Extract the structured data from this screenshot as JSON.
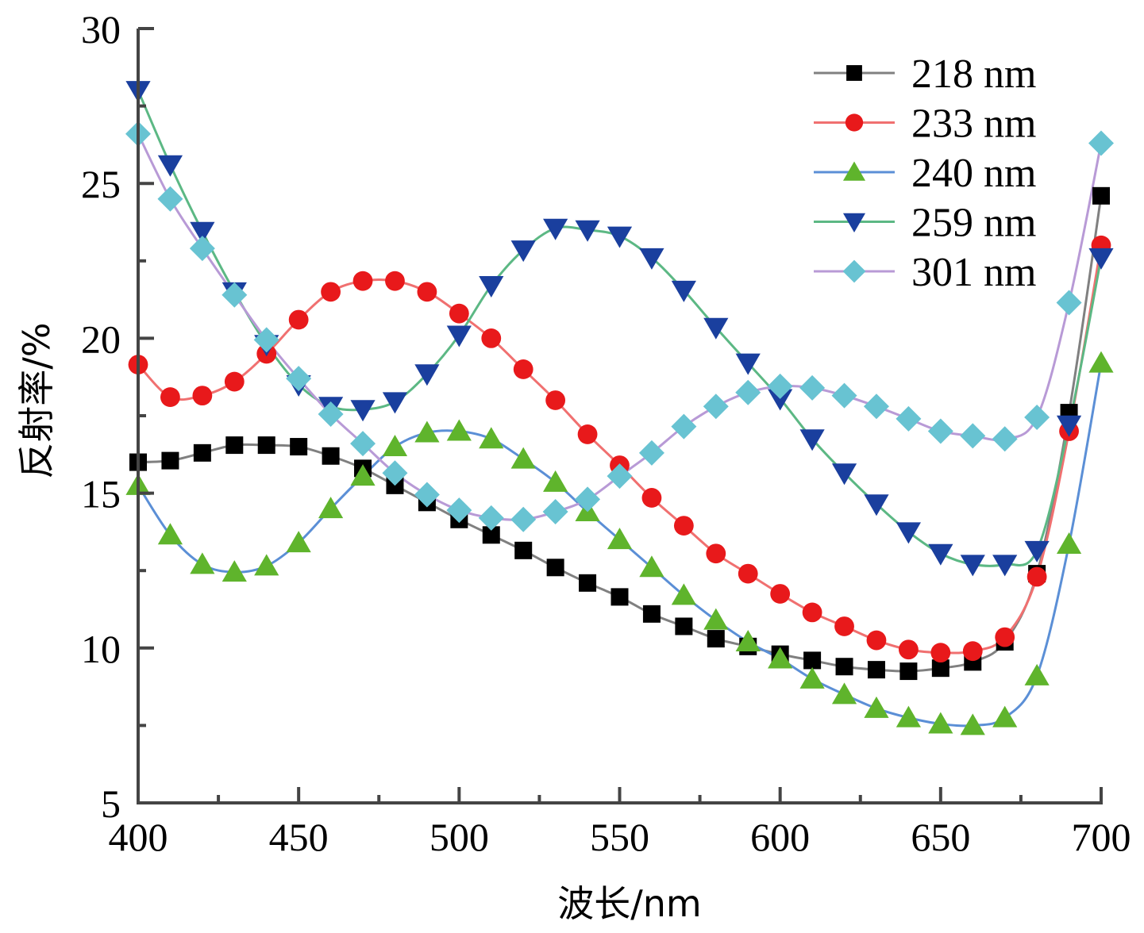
{
  "chart_data": {
    "type": "line",
    "title": "",
    "xlabel": "波长/nm",
    "ylabel": "反射率/%",
    "xlim": [
      400,
      700
    ],
    "ylim": [
      5,
      30
    ],
    "xticks": [
      400,
      450,
      500,
      550,
      600,
      650,
      700
    ],
    "yticks": [
      5,
      10,
      15,
      20,
      25,
      30
    ],
    "xtick_labels": [
      "400",
      "450",
      "500",
      "550",
      "600",
      "650",
      "700"
    ],
    "ytick_labels": [
      "5",
      "10",
      "15",
      "20",
      "25",
      "30"
    ],
    "grid": false,
    "legend_position": "top-right",
    "x": [
      400,
      410,
      420,
      430,
      440,
      450,
      460,
      470,
      480,
      490,
      500,
      510,
      520,
      530,
      540,
      550,
      560,
      570,
      580,
      590,
      600,
      610,
      620,
      630,
      640,
      650,
      660,
      670,
      680,
      690,
      700
    ],
    "series": [
      {
        "name": "218 nm",
        "marker": "square",
        "marker_color": "#000000",
        "line_color": "#808080",
        "values": [
          16.0,
          16.05,
          16.3,
          16.55,
          16.55,
          16.5,
          16.2,
          15.8,
          15.25,
          14.7,
          14.15,
          13.65,
          13.15,
          12.6,
          12.1,
          11.65,
          11.1,
          10.7,
          10.3,
          10.05,
          9.8,
          9.6,
          9.4,
          9.3,
          9.25,
          9.35,
          9.55,
          10.2,
          12.4,
          17.6,
          24.6
        ]
      },
      {
        "name": "233 nm",
        "marker": "circle",
        "marker_color": "#e8191b",
        "line_color": "#f07070",
        "values": [
          19.15,
          18.1,
          18.15,
          18.6,
          19.5,
          20.6,
          21.5,
          21.85,
          21.85,
          21.5,
          20.8,
          20.0,
          19.0,
          18.0,
          16.9,
          15.9,
          14.85,
          13.95,
          13.05,
          12.4,
          11.75,
          11.15,
          10.7,
          10.25,
          9.95,
          9.85,
          9.9,
          10.35,
          12.3,
          17.0,
          23.0
        ]
      },
      {
        "name": "240 nm",
        "marker": "triangle-up",
        "marker_color": "#5fb42c",
        "line_color": "#5b8fd6",
        "values": [
          15.25,
          13.65,
          12.7,
          12.45,
          12.65,
          13.4,
          14.5,
          15.55,
          16.5,
          16.95,
          17.0,
          16.75,
          16.1,
          15.35,
          14.4,
          13.5,
          12.6,
          11.7,
          10.9,
          10.2,
          9.65,
          9.0,
          8.5,
          8.05,
          7.75,
          7.55,
          7.5,
          7.75,
          9.1,
          13.35,
          19.2
        ]
      },
      {
        "name": "259 nm",
        "marker": "triangle-down",
        "marker_color": "#1a3f9e",
        "line_color": "#5cb884",
        "values": [
          28.0,
          25.6,
          23.45,
          21.5,
          19.8,
          18.5,
          17.8,
          17.7,
          17.95,
          18.85,
          20.1,
          21.7,
          22.85,
          23.55,
          23.5,
          23.3,
          22.6,
          21.55,
          20.35,
          19.2,
          18.05,
          16.75,
          15.65,
          14.65,
          13.75,
          13.05,
          12.7,
          12.7,
          13.15,
          17.2,
          22.6
        ]
      },
      {
        "name": "301 nm",
        "marker": "diamond",
        "marker_color": "#68c3d2",
        "line_color": "#b89ad6",
        "values": [
          26.6,
          24.5,
          22.9,
          21.4,
          19.95,
          18.7,
          17.55,
          16.6,
          15.65,
          14.95,
          14.45,
          14.2,
          14.15,
          14.4,
          14.8,
          15.55,
          16.3,
          17.15,
          17.8,
          18.25,
          18.45,
          18.4,
          18.15,
          17.8,
          17.4,
          17.0,
          16.85,
          16.75,
          17.45,
          21.15,
          26.3
        ]
      }
    ]
  }
}
